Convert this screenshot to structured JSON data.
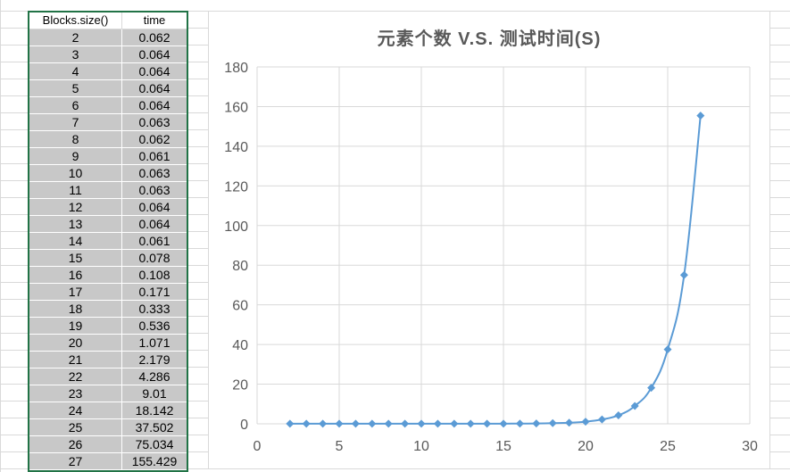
{
  "table": {
    "headers": [
      "Blocks.size()",
      "time"
    ],
    "rows": [
      [
        "2",
        "0.062"
      ],
      [
        "3",
        "0.064"
      ],
      [
        "4",
        "0.064"
      ],
      [
        "5",
        "0.064"
      ],
      [
        "6",
        "0.064"
      ],
      [
        "7",
        "0.063"
      ],
      [
        "8",
        "0.062"
      ],
      [
        "9",
        "0.061"
      ],
      [
        "10",
        "0.063"
      ],
      [
        "11",
        "0.063"
      ],
      [
        "12",
        "0.064"
      ],
      [
        "13",
        "0.064"
      ],
      [
        "14",
        "0.061"
      ],
      [
        "15",
        "0.078"
      ],
      [
        "16",
        "0.108"
      ],
      [
        "17",
        "0.171"
      ],
      [
        "18",
        "0.333"
      ],
      [
        "19",
        "0.536"
      ],
      [
        "20",
        "1.071"
      ],
      [
        "21",
        "2.179"
      ],
      [
        "22",
        "4.286"
      ],
      [
        "23",
        "9.01"
      ],
      [
        "24",
        "18.142"
      ],
      [
        "25",
        "37.502"
      ],
      [
        "26",
        "75.034"
      ],
      [
        "27",
        "155.429"
      ]
    ]
  },
  "chart_data": {
    "type": "scatter",
    "title": "元素个数 V.S. 测试时间(S)",
    "xlabel": "",
    "ylabel": "",
    "xlim": [
      0,
      30
    ],
    "ylim": [
      0,
      180
    ],
    "xticks": [
      0,
      5,
      10,
      15,
      20,
      25,
      30
    ],
    "yticks": [
      0,
      20,
      40,
      60,
      80,
      100,
      120,
      140,
      160,
      180
    ],
    "grid": true,
    "line_style": "smooth-with-diamond-markers",
    "series": [
      {
        "color": "#5b9bd5",
        "x": [
          2,
          3,
          4,
          5,
          6,
          7,
          8,
          9,
          10,
          11,
          12,
          13,
          14,
          15,
          16,
          17,
          18,
          19,
          20,
          21,
          22,
          23,
          24,
          25,
          26,
          27
        ],
        "y": [
          0.062,
          0.064,
          0.064,
          0.064,
          0.064,
          0.063,
          0.062,
          0.061,
          0.063,
          0.063,
          0.064,
          0.064,
          0.061,
          0.078,
          0.108,
          0.171,
          0.333,
          0.536,
          1.071,
          2.179,
          4.286,
          9.01,
          18.142,
          37.502,
          75.034,
          155.429
        ]
      }
    ]
  }
}
